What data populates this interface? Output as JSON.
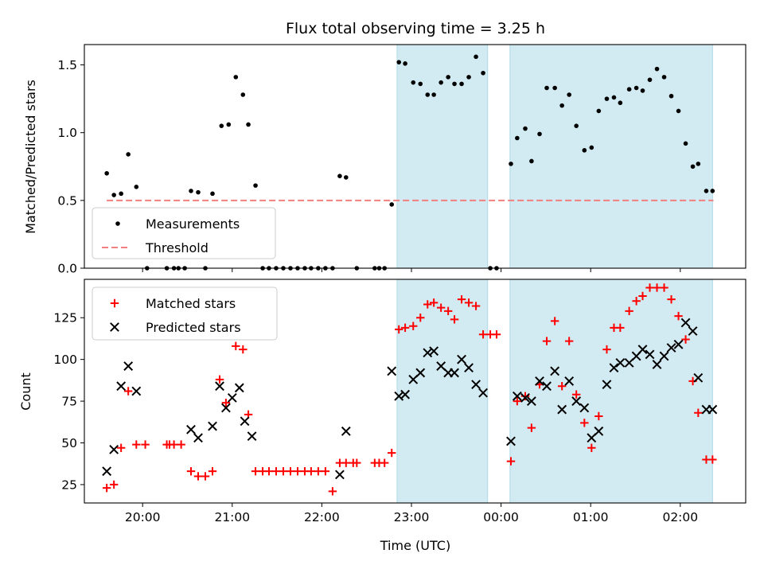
{
  "chart_data": {
    "type": "scatter",
    "title": "Flux total observing time = 3.25 h",
    "xlabel": "Time (UTC)",
    "x_ticks": [
      "20:00",
      "21:00",
      "22:00",
      "23:00",
      "00:00",
      "01:00",
      "02:00"
    ],
    "x_tick_hours": [
      20,
      21,
      22,
      23,
      24,
      25,
      26
    ],
    "xlim_hours": [
      19.35,
      26.73
    ],
    "shaded_intervals_hours": [
      [
        22.84,
        23.85
      ],
      [
        24.1,
        26.36
      ]
    ],
    "colors": {
      "measurements": "#000000",
      "threshold": "#f08080",
      "matched": "#ff0000",
      "predicted": "#000000",
      "shade": "#add8e6"
    },
    "panels": [
      {
        "ylabel": "Matched/Predicted stars",
        "ylim": [
          0,
          1.65
        ],
        "y_ticks": [
          0.0,
          0.5,
          1.0,
          1.5
        ],
        "y_tick_labels": [
          "0.0",
          "0.5",
          "1.0",
          "1.5"
        ],
        "legend": {
          "position": "lower-left",
          "entries": [
            "Measurements",
            "Threshold"
          ]
        },
        "threshold": {
          "name": "Threshold",
          "y": 0.5,
          "x_range_hours": [
            19.6,
            26.37
          ]
        },
        "series": [
          {
            "name": "Measurements",
            "marker": "dot",
            "x": [
              19.6,
              19.68,
              19.76,
              19.84,
              19.93,
              20.05,
              20.27,
              20.35,
              20.4,
              20.47,
              20.54,
              20.62,
              20.7,
              20.78,
              20.88,
              20.96,
              21.04,
              21.12,
              21.18,
              21.26,
              21.34,
              21.41,
              21.49,
              21.57,
              21.65,
              21.73,
              21.81,
              21.88,
              21.96,
              22.04,
              22.12,
              22.2,
              22.27,
              22.39,
              22.59,
              22.64,
              22.7,
              22.78,
              22.86,
              22.93,
              23.02,
              23.1,
              23.18,
              23.25,
              23.33,
              23.41,
              23.48,
              23.56,
              23.64,
              23.72,
              23.8,
              23.88,
              23.95,
              24.11,
              24.18,
              24.27,
              24.34,
              24.43,
              24.51,
              24.6,
              24.68,
              24.76,
              24.84,
              24.93,
              25.01,
              25.09,
              25.18,
              25.26,
              25.33,
              25.43,
              25.51,
              25.58,
              25.66,
              25.74,
              25.82,
              25.9,
              25.98,
              26.06,
              26.14,
              26.2,
              26.29,
              26.36
            ],
            "y": [
              0.7,
              0.54,
              0.55,
              0.84,
              0.6,
              0.0,
              0.0,
              0.0,
              0.0,
              0.0,
              0.57,
              0.56,
              0.0,
              0.55,
              1.05,
              1.06,
              1.41,
              1.28,
              1.06,
              0.61,
              0.0,
              0.0,
              0.0,
              0.0,
              0.0,
              0.0,
              0.0,
              0.0,
              0.0,
              0.0,
              0.0,
              0.68,
              0.67,
              0.0,
              0.0,
              0.0,
              0.0,
              0.47,
              1.52,
              1.51,
              1.37,
              1.36,
              1.28,
              1.28,
              1.37,
              1.41,
              1.36,
              1.36,
              1.41,
              1.56,
              1.44,
              0.0,
              0.0,
              0.77,
              0.96,
              1.03,
              0.79,
              0.99,
              1.33,
              1.33,
              1.2,
              1.28,
              1.05,
              0.87,
              0.89,
              1.16,
              1.25,
              1.26,
              1.22,
              1.32,
              1.33,
              1.31,
              1.39,
              1.47,
              1.41,
              1.27,
              1.16,
              0.92,
              0.75,
              0.77,
              0.57,
              0.57
            ]
          }
        ]
      },
      {
        "ylabel": "Count",
        "ylim": [
          14,
          148
        ],
        "y_ticks": [
          25,
          50,
          75,
          100,
          125
        ],
        "y_tick_labels": [
          "25",
          "50",
          "75",
          "100",
          "125"
        ],
        "legend": {
          "position": "upper-left",
          "entries": [
            "Matched stars",
            "Predicted stars"
          ]
        },
        "series": [
          {
            "name": "Matched stars",
            "marker": "plus",
            "x": [
              19.6,
              19.68,
              19.76,
              19.84,
              19.93,
              20.03,
              20.27,
              20.3,
              20.35,
              20.43,
              20.54,
              20.62,
              20.7,
              20.78,
              20.86,
              20.93,
              21.04,
              21.12,
              21.18,
              21.26,
              21.34,
              21.41,
              21.49,
              21.57,
              21.65,
              21.73,
              21.81,
              21.88,
              21.96,
              22.04,
              22.12,
              22.2,
              22.27,
              22.35,
              22.39,
              22.59,
              22.64,
              22.7,
              22.78,
              22.86,
              22.93,
              23.02,
              23.1,
              23.18,
              23.25,
              23.33,
              23.41,
              23.48,
              23.56,
              23.64,
              23.72,
              23.8,
              23.88,
              23.95,
              24.11,
              24.18,
              24.27,
              24.34,
              24.43,
              24.51,
              24.6,
              24.68,
              24.76,
              24.84,
              24.93,
              25.01,
              25.09,
              25.18,
              25.26,
              25.33,
              25.43,
              25.51,
              25.58,
              25.66,
              25.74,
              25.82,
              25.9,
              25.98,
              26.06,
              26.14,
              26.2,
              26.29,
              26.36
            ],
            "y": [
              23,
              25,
              47,
              81,
              49,
              49,
              49,
              49,
              49,
              49,
              33,
              30,
              30,
              33,
              88,
              74,
              108,
              106,
              67,
              33,
              33,
              33,
              33,
              33,
              33,
              33,
              33,
              33,
              33,
              33,
              21,
              38,
              38,
              38,
              38,
              38,
              38,
              38,
              44,
              118,
              119,
              120,
              125,
              133,
              134,
              131,
              129,
              124,
              136,
              134,
              132,
              115,
              115,
              115,
              39,
              75,
              78,
              59,
              85,
              111,
              123,
              84,
              111,
              79,
              62,
              47,
              66,
              106,
              119,
              119,
              129,
              135,
              138,
              143,
              143,
              143,
              136,
              126,
              112,
              87,
              68,
              40,
              40
            ]
          },
          {
            "name": "Predicted stars",
            "marker": "x",
            "x": [
              19.6,
              19.68,
              19.76,
              19.84,
              19.93,
              20.54,
              20.62,
              20.78,
              20.86,
              20.93,
              21.0,
              21.08,
              21.14,
              21.22,
              22.2,
              22.27,
              22.78,
              22.86,
              22.93,
              23.02,
              23.1,
              23.18,
              23.25,
              23.33,
              23.41,
              23.48,
              23.56,
              23.64,
              23.72,
              23.8,
              24.11,
              24.18,
              24.27,
              24.34,
              24.43,
              24.51,
              24.6,
              24.68,
              24.76,
              24.84,
              24.93,
              25.01,
              25.09,
              25.18,
              25.26,
              25.33,
              25.43,
              25.51,
              25.58,
              25.66,
              25.74,
              25.82,
              25.9,
              25.98,
              26.06,
              26.14,
              26.2,
              26.29,
              26.36
            ],
            "y": [
              33,
              46,
              84,
              96,
              81,
              58,
              53,
              60,
              84,
              71,
              77,
              83,
              63,
              54,
              31,
              57,
              93,
              78,
              79,
              88,
              92,
              104,
              105,
              96,
              92,
              92,
              100,
              95,
              85,
              80,
              51,
              78,
              77,
              75,
              87,
              84,
              93,
              70,
              87,
              75,
              71,
              53,
              57,
              85,
              95,
              98,
              98,
              102,
              106,
              103,
              97,
              102,
              107,
              109,
              122,
              117,
              89,
              70,
              70
            ]
          }
        ]
      }
    ]
  }
}
